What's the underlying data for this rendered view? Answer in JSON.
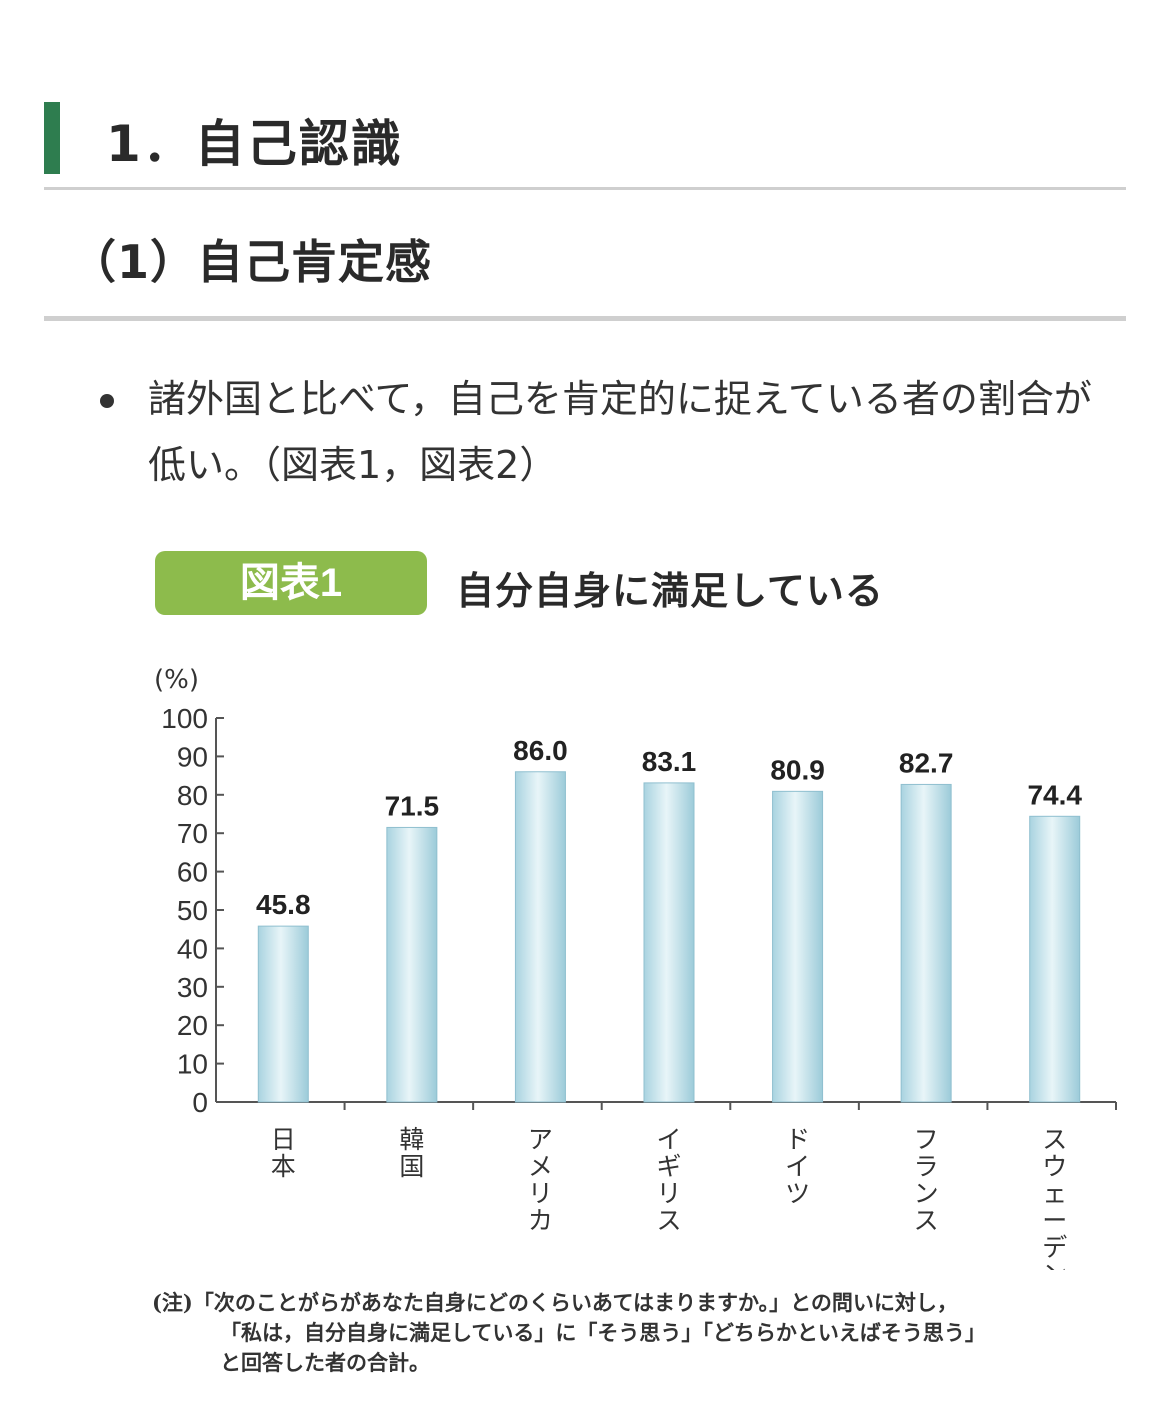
{
  "section": {
    "heading": "1．自己認識"
  },
  "subsection": {
    "heading": "（1）自己肯定感"
  },
  "bullet": {
    "text": "諸外国と比べて，自己を肯定的に捉えている者の割合が低い。（図表1，図表2）"
  },
  "figure": {
    "badge": "図表1",
    "title": "自分自身に満足している",
    "badge_color": "#8dbb4c"
  },
  "chart_data": {
    "type": "bar",
    "title": "自分自身に満足している",
    "ylabel": "(%)",
    "xlabel": "",
    "ylim": [
      0,
      100
    ],
    "yticks": [
      0,
      10,
      20,
      30,
      40,
      50,
      60,
      70,
      80,
      90,
      100
    ],
    "categories": [
      "日本",
      "韓国",
      "アメリカ",
      "イギリス",
      "ドイツ",
      "フランス",
      "スウェーデン"
    ],
    "values": [
      45.8,
      71.5,
      86.0,
      83.1,
      80.9,
      82.7,
      74.4
    ],
    "value_labels": [
      "45.8",
      "71.5",
      "86.0",
      "83.1",
      "80.9",
      "82.7",
      "74.4"
    ],
    "bar_color": "#bfe0ea",
    "grid": false
  },
  "note": {
    "line1": "(注)「次のことがらがあなた自身にどのくらいあてはまりますか。」との問いに対し，",
    "line2": "「私は，自分自身に満足している」に「そう思う」「どちらかといえばそう思う」",
    "line3": "と回答した者の合計。"
  }
}
